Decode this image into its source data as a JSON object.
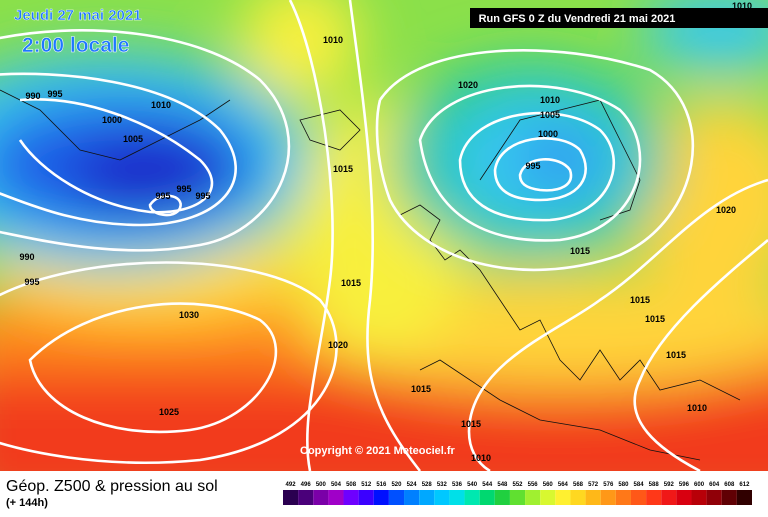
{
  "header": {
    "date": "Jeudi 27 mai 2021",
    "time": "2:00 locale",
    "run": "Run GFS 0 Z du Vendredi 21 mai 2021"
  },
  "map": {
    "isobar_labels": [
      "1010",
      "1010",
      "1020",
      "990",
      "995",
      "1010",
      "1010",
      "1000",
      "1005",
      "1005",
      "1000",
      "1015",
      "995",
      "995",
      "995",
      "995",
      "1020",
      "1015",
      "990",
      "995",
      "1015",
      "1015",
      "1030",
      "1015",
      "1020",
      "1015",
      "1015",
      "1025",
      "1010",
      "1015",
      "1010"
    ],
    "copyright": "Copyright © 2021 Meteociel.fr"
  },
  "footer": {
    "title": "Géop. Z500 & pression au sol",
    "lead": "(+ 144h)"
  },
  "legend": {
    "labels": [
      "492",
      "496",
      "500",
      "504",
      "508",
      "512",
      "516",
      "520",
      "524",
      "528",
      "532",
      "536",
      "540",
      "544",
      "548",
      "552",
      "556",
      "560",
      "564",
      "568",
      "572",
      "576",
      "580",
      "584",
      "588",
      "592",
      "596",
      "600",
      "604",
      "608",
      "612"
    ]
  }
}
